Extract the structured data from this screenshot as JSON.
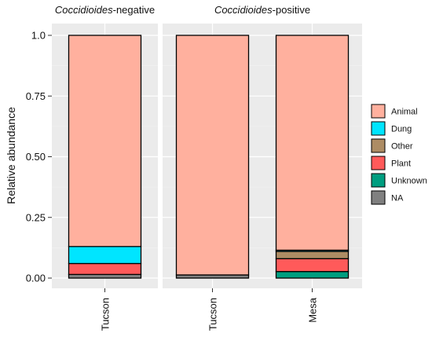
{
  "chart_data": {
    "type": "bar",
    "stacked": true,
    "ylabel": "Relative abundance",
    "ylim": [
      0,
      1
    ],
    "yticks": [
      "0.00",
      "0.25",
      "0.50",
      "0.75",
      "1.0"
    ],
    "facets": [
      {
        "italic": "Coccidioides",
        "suffix": "-negative",
        "categories": [
          "Tucson"
        ]
      },
      {
        "italic": "Coccidioides",
        "suffix": "-positive",
        "categories": [
          "Tucson",
          "Mesa"
        ]
      }
    ],
    "series": [
      {
        "name": "NA",
        "color": "#808080"
      },
      {
        "name": "Unknown",
        "color": "#009e80"
      },
      {
        "name": "Plant",
        "color": "#ff5a5a"
      },
      {
        "name": "Other",
        "color": "#ad8c64"
      },
      {
        "name": "Dung",
        "color": "#00e5ff"
      },
      {
        "name": "Animal",
        "color": "#ffb09e"
      }
    ],
    "bars": [
      {
        "facet": 0,
        "category": "Tucson",
        "values": {
          "NA": 0.015,
          "Unknown": 0.0,
          "Plant": 0.045,
          "Other": 0.0,
          "Dung": 0.07,
          "Animal": 0.87
        }
      },
      {
        "facet": 1,
        "category": "Tucson",
        "values": {
          "NA": 0.013,
          "Unknown": 0.0,
          "Plant": 0.0,
          "Other": 0.0,
          "Dung": 0.0,
          "Animal": 0.987
        }
      },
      {
        "facet": 1,
        "category": "Mesa",
        "values": {
          "NA": 0.0,
          "Unknown": 0.027,
          "Plant": 0.053,
          "Other": 0.03,
          "Dung": 0.005,
          "Animal": 0.885
        }
      }
    ],
    "legend": {
      "position": "right",
      "order": [
        "Animal",
        "Dung",
        "Other",
        "Plant",
        "Unknown",
        "NA"
      ]
    },
    "grid": true
  }
}
